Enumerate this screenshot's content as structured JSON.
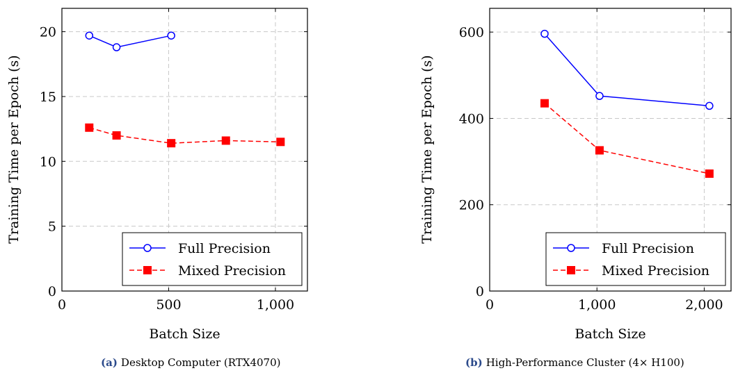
{
  "chart_data": [
    {
      "type": "line",
      "caption_tag": "(a)",
      "caption_text": "Desktop Computer (RTX4070)",
      "xlabel": "Batch Size",
      "ylabel": "Training Time per Epoch (s)",
      "xlim": [
        0,
        1150
      ],
      "ylim": [
        0,
        21.8
      ],
      "xticks": [
        0,
        500,
        1000
      ],
      "xtick_labels": [
        "0",
        "500",
        "1,000"
      ],
      "yticks": [
        0,
        5,
        10,
        15,
        20
      ],
      "ytick_labels": [
        "0",
        "5",
        "10",
        "15",
        "20"
      ],
      "grid": true,
      "legend_position": "bottom-right",
      "series": [
        {
          "name": "Full Precision",
          "color": "#0000ff",
          "marker": "circle",
          "dash": "solid",
          "x": [
            128,
            256,
            512
          ],
          "y": [
            19.7,
            18.8,
            19.7
          ]
        },
        {
          "name": "Mixed Precision",
          "color": "#ff0000",
          "marker": "square",
          "dash": "dashed",
          "x": [
            128,
            256,
            512,
            768,
            1024
          ],
          "y": [
            12.6,
            12.0,
            11.4,
            11.6,
            11.5
          ]
        }
      ]
    },
    {
      "type": "line",
      "caption_tag": "(b)",
      "caption_text": "High-Performance Cluster (4× H100)",
      "xlabel": "Batch Size",
      "ylabel": "Training Time per Epoch (s)",
      "xlim": [
        0,
        2250
      ],
      "ylim": [
        0,
        655
      ],
      "xticks": [
        0,
        1000,
        2000
      ],
      "xtick_labels": [
        "0",
        "1,000",
        "2,000"
      ],
      "yticks": [
        0,
        200,
        400,
        600
      ],
      "ytick_labels": [
        "0",
        "200",
        "400",
        "600"
      ],
      "grid": true,
      "legend_position": "bottom-right",
      "series": [
        {
          "name": "Full Precision",
          "color": "#0000ff",
          "marker": "circle",
          "dash": "solid",
          "x": [
            512,
            1024,
            2048
          ],
          "y": [
            596,
            452,
            429
          ]
        },
        {
          "name": "Mixed Precision",
          "color": "#ff0000",
          "marker": "square",
          "dash": "dashed",
          "x": [
            512,
            1024,
            2048
          ],
          "y": [
            435,
            326,
            272
          ]
        }
      ]
    }
  ]
}
